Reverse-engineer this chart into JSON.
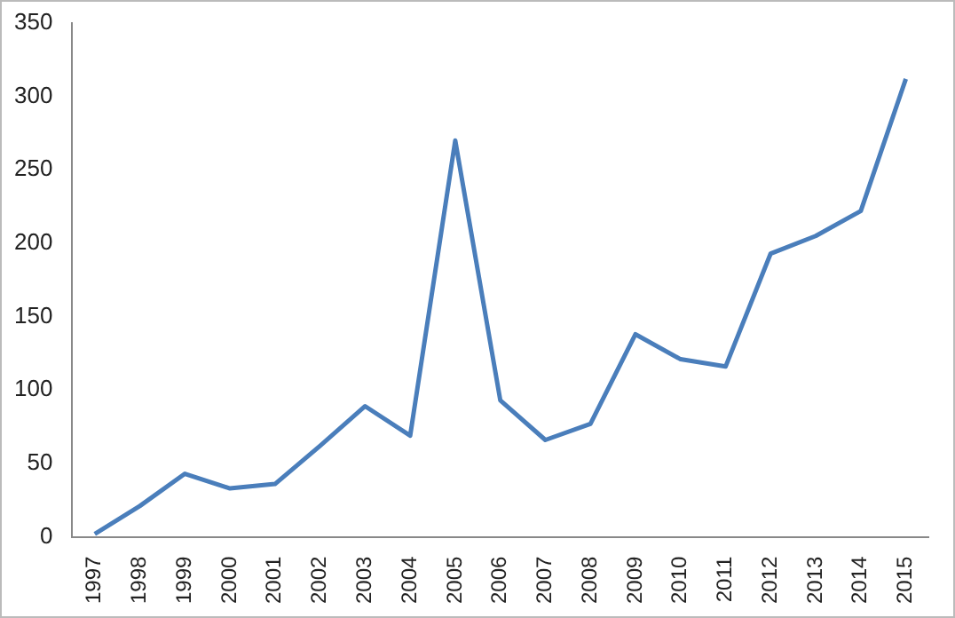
{
  "chart_data": {
    "type": "line",
    "categories": [
      "1997",
      "1998",
      "1999",
      "2000",
      "2001",
      "2002",
      "2003",
      "2004",
      "2005",
      "2006",
      "2007",
      "2008",
      "2009",
      "2010",
      "2011",
      "2012",
      "2013",
      "2014",
      "2015"
    ],
    "series": [
      {
        "color": "#4a7ebb",
        "values": [
          2,
          21,
          43,
          33,
          36,
          62,
          89,
          69,
          270,
          93,
          66,
          77,
          138,
          121,
          116,
          193,
          205,
          222,
          312
        ]
      }
    ],
    "ylim": [
      0,
      350
    ],
    "yticks": [
      0,
      50,
      100,
      150,
      200,
      250,
      300,
      350
    ],
    "grid": false,
    "legend": false,
    "marker": "none",
    "line_style": "solid"
  }
}
